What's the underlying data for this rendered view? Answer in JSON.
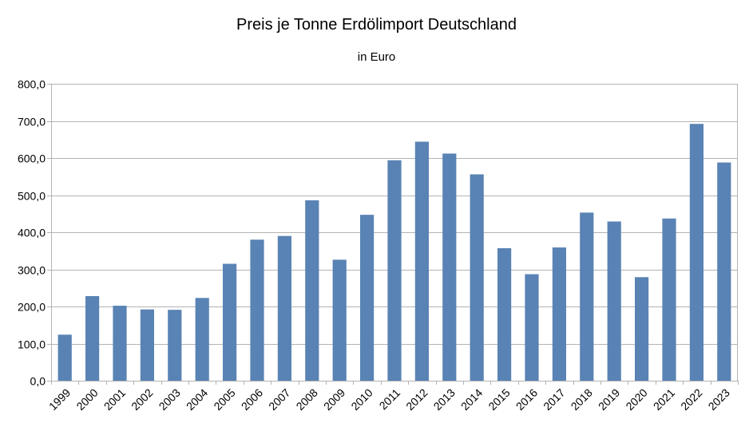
{
  "chart_data": {
    "type": "bar",
    "title": "Preis je Tonne Erdölimport Deutschland",
    "subtitle": "in Euro",
    "xlabel": "",
    "ylabel": "",
    "categories": [
      "1999",
      "2000",
      "2001",
      "2002",
      "2003",
      "2004",
      "2005",
      "2006",
      "2007",
      "2008",
      "2009",
      "2010",
      "2011",
      "2012",
      "2013",
      "2014",
      "2015",
      "2016",
      "2017",
      "2018",
      "2019",
      "2020",
      "2021",
      "2022",
      "2023"
    ],
    "values": [
      124,
      228,
      202,
      192,
      191,
      223,
      315,
      380,
      390,
      486,
      326,
      447,
      594,
      644,
      612,
      556,
      357,
      287,
      359,
      453,
      429,
      279,
      437,
      692,
      588
    ],
    "ylim": [
      0,
      800
    ],
    "yticks": [
      0,
      100,
      200,
      300,
      400,
      500,
      600,
      700,
      800
    ],
    "ytick_labels": [
      "0,0",
      "100,0",
      "200,0",
      "300,0",
      "400,0",
      "500,0",
      "600,0",
      "700,0",
      "800,0"
    ],
    "grid": true,
    "legend": "none",
    "bar_color": "#5983b4",
    "grid_color": "#b3b3b3"
  }
}
